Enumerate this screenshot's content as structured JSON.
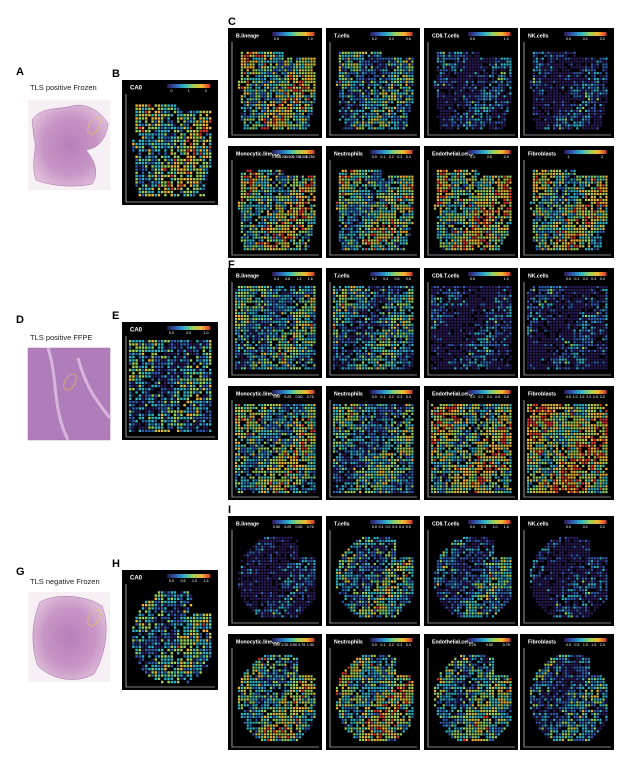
{
  "rows": [
    {
      "he": {
        "letter": "A",
        "caption": "TLS positive Frozen"
      },
      "ca0": {
        "letter": "B",
        "title": "CA0",
        "ticks": [
          "0",
          "1",
          "2"
        ]
      },
      "grid": {
        "letter": "C",
        "panels": [
          {
            "title": "B.lineage",
            "ticks": [
              "0.5",
              "1.0"
            ]
          },
          {
            "title": "T.cells",
            "ticks": [
              "0.2",
              "0.4",
              "0.6"
            ]
          },
          {
            "title": "CD8.T.cells",
            "ticks": [
              "0.5",
              "1.0"
            ]
          },
          {
            "title": "NK.cells",
            "ticks": [
              "0.0",
              "0.1",
              "0.2"
            ]
          },
          {
            "title": "Monocytic.lineage",
            "ticks": [
              "0.000",
              "0.250",
              "0.500",
              "0.750",
              "1.000",
              "1.250"
            ]
          },
          {
            "title": "Neutrophils",
            "ticks": [
              "0.0",
              "0.1",
              "0.2",
              "0.3",
              "0.4"
            ]
          },
          {
            "title": "Endothelial.cells",
            "ticks": [
              "0.3",
              "0.6",
              "0.9"
            ]
          },
          {
            "title": "Fibroblasts",
            "ticks": [
              "1",
              "2"
            ]
          }
        ]
      }
    },
    {
      "he": {
        "letter": "D",
        "caption": "TLS positive FFPE"
      },
      "ca0": {
        "letter": "E",
        "title": "CA0",
        "ticks": [
          "0.0",
          "0.5",
          "1.0"
        ]
      },
      "grid": {
        "letter": "F",
        "panels": [
          {
            "title": "B.lineage",
            "ticks": [
              "0.4",
              "0.8",
              "1.2",
              "1.6"
            ]
          },
          {
            "title": "T.cells",
            "ticks": [
              "0.2",
              "0.4",
              "0.6",
              "0.8"
            ]
          },
          {
            "title": "CD8.T.cells",
            "ticks": [
              "0.5",
              "1.0"
            ]
          },
          {
            "title": "NK.cells",
            "ticks": [
              "0.0",
              "0.1",
              "0.2",
              "0.3",
              "0.4"
            ]
          },
          {
            "title": "Monocytic.lineage",
            "ticks": [
              "0.00",
              "0.25",
              "0.50",
              "0.75"
            ]
          },
          {
            "title": "Neutrophils",
            "ticks": [
              "0.0",
              "0.1",
              "0.2",
              "0.3",
              "0.4"
            ]
          },
          {
            "title": "Endothelial.cells",
            "ticks": [
              "0.0",
              "0.2",
              "0.4",
              "0.6",
              "0.8"
            ]
          },
          {
            "title": "Fibroblasts",
            "ticks": [
              "0.5",
              "1.0",
              "1.5",
              "2.0",
              "2.5",
              "3.0"
            ]
          }
        ]
      }
    },
    {
      "he": {
        "letter": "G",
        "caption": "TLS negative Frozen"
      },
      "ca0": {
        "letter": "H",
        "title": "CA0",
        "ticks": [
          "0.0",
          "0.5",
          "1.0",
          "1.5"
        ]
      },
      "grid": {
        "letter": "I",
        "panels": [
          {
            "title": "B.lineage",
            "ticks": [
              "0.00",
              "0.25",
              "0.50",
              "0.75"
            ]
          },
          {
            "title": "T.cells",
            "ticks": [
              "0.0",
              "0.1",
              "0.2",
              "0.3",
              "0.4",
              "0.5"
            ]
          },
          {
            "title": "CD8.T.cells",
            "ticks": [
              "0.0",
              "0.5",
              "1.0",
              "1.5"
            ]
          },
          {
            "title": "NK.cells",
            "ticks": [
              "0.0",
              "0.1",
              "0.2"
            ]
          },
          {
            "title": "Monocytic.lineage",
            "ticks": [
              "0.00",
              "0.25",
              "0.50",
              "0.75",
              "1.00"
            ]
          },
          {
            "title": "Neutrophils",
            "ticks": [
              "0.0",
              "0.1",
              "0.2",
              "0.3",
              "0.4"
            ]
          },
          {
            "title": "Endothelial.cells",
            "ticks": [
              "0.25",
              "0.50",
              "0.75"
            ]
          },
          {
            "title": "Fibroblasts",
            "ticks": [
              "0.0",
              "0.5",
              "1.0",
              "1.5",
              "2.0"
            ]
          }
        ]
      }
    }
  ]
}
